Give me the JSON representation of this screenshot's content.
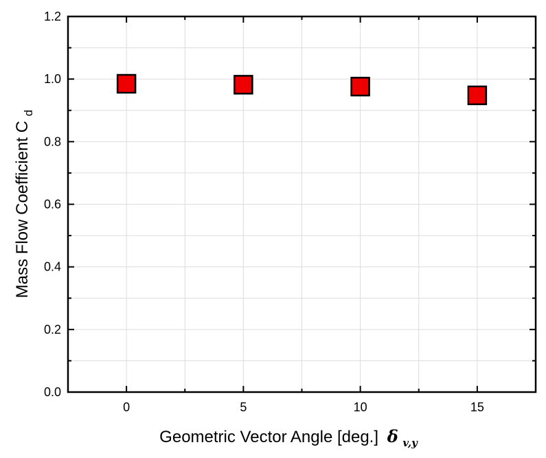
{
  "chart_data": {
    "type": "scatter",
    "xlabel": "Geometric Vector Angle [deg.]",
    "xlabel_symbol": "δ",
    "xlabel_symbol_subscript": "v,y",
    "ylabel": "Mass Flow Coefficient C",
    "ylabel_subscript": "d",
    "xlim": [
      -2.5,
      17.5
    ],
    "ylim": [
      0.0,
      1.2
    ],
    "x_ticks": [
      0,
      5,
      10,
      15
    ],
    "x_tick_labels": [
      "0",
      "5",
      "10",
      "15"
    ],
    "y_ticks": [
      0.0,
      0.2,
      0.4,
      0.6,
      0.8,
      1.0,
      1.2
    ],
    "y_tick_labels": [
      "0.0",
      "0.2",
      "0.4",
      "0.6",
      "0.8",
      "1.0",
      "1.2"
    ],
    "grid": true,
    "marker": "square",
    "marker_color": "#ee0000",
    "marker_edge_color": "#000000",
    "series": [
      {
        "x": [
          0,
          5,
          10,
          15
        ],
        "values": [
          0.985,
          0.982,
          0.976,
          0.948
        ]
      }
    ]
  }
}
